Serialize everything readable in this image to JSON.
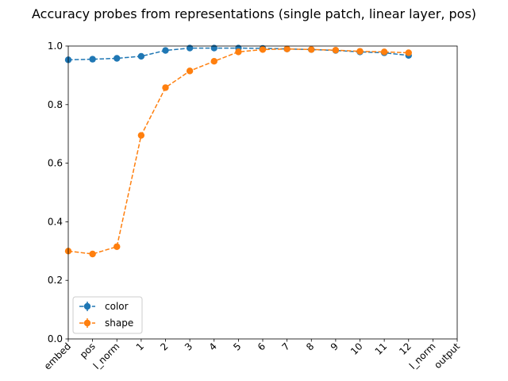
{
  "chart_data": {
    "type": "line",
    "title": "Accuracy probes from representations (single patch, linear layer, pos)",
    "xlabel": "",
    "ylabel": "",
    "categories": [
      "embed",
      "pos",
      "l_norm",
      "1",
      "2",
      "3",
      "4",
      "5",
      "6",
      "7",
      "8",
      "9",
      "10",
      "11",
      "12",
      "l_norm",
      "output"
    ],
    "ylim": [
      0.0,
      1.0
    ],
    "yticks": [
      "0.0",
      "0.2",
      "0.4",
      "0.6",
      "0.8",
      "1.0"
    ],
    "grid": false,
    "legend_position": "lower-left",
    "series": [
      {
        "name": "color",
        "color": "#1f77b4",
        "line_style": "dashed",
        "marker": "circle",
        "values": [
          0.953,
          0.955,
          0.958,
          0.965,
          0.985,
          0.993,
          0.993,
          0.993,
          0.992,
          0.99,
          0.988,
          0.985,
          0.98,
          0.977,
          0.968,
          null,
          null
        ]
      },
      {
        "name": "shape",
        "color": "#ff7f0e",
        "line_style": "dashed",
        "marker": "circle",
        "values": [
          0.3,
          0.29,
          0.315,
          0.695,
          0.858,
          0.915,
          0.948,
          0.98,
          0.988,
          0.99,
          0.988,
          0.986,
          0.982,
          0.98,
          0.977,
          null,
          null
        ]
      }
    ]
  }
}
